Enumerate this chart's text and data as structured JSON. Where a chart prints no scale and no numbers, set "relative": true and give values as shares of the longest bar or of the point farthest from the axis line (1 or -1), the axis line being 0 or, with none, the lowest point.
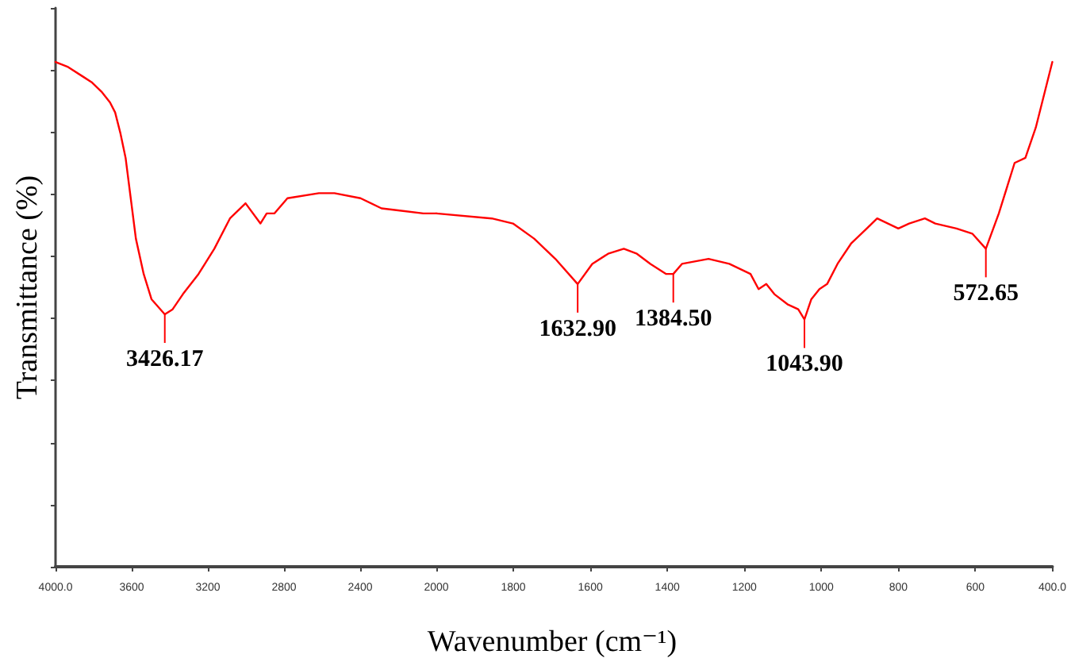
{
  "chart_data": [
    {
      "type": "line",
      "ylabel": "Transmittance (%)",
      "relative": true,
      "color": "#ff0000",
      "xlim": [
        4000,
        2000
      ],
      "xticks": [
        {
          "value": 4000,
          "label": "4000.0"
        },
        3600,
        3200,
        2800,
        2400,
        2000
      ],
      "x": [
        4000,
        3934,
        3852,
        3811,
        3756,
        3714,
        3687,
        3660,
        3632,
        3605,
        3578,
        3537,
        3496,
        3426.17,
        3385,
        3331,
        3249,
        3166,
        3084,
        3002,
        2924,
        2891,
        2850,
        2782,
        2617,
        2535,
        2398,
        2288,
        2068,
        2000
      ],
      "values": [
        1.0,
        0.99,
        0.97,
        0.96,
        0.94,
        0.92,
        0.9,
        0.86,
        0.81,
        0.73,
        0.65,
        0.58,
        0.53,
        0.5,
        0.51,
        0.54,
        0.58,
        0.63,
        0.69,
        0.72,
        0.68,
        0.7,
        0.7,
        0.73,
        0.74,
        0.74,
        0.73,
        0.71,
        0.7,
        0.7
      ],
      "annotations": [
        {
          "text": "3426.17",
          "x": 3426.17,
          "y": 0.5
        }
      ]
    },
    {
      "type": "line",
      "xlabel": "Wavenumber (cm⁻¹)",
      "relative": true,
      "color": "#ff0000",
      "xlim": [
        2000,
        400
      ],
      "tick_labels": "x",
      "xticks": [
        {
          "value": 2000,
          "label": null
        },
        1800,
        1600,
        1400,
        1200,
        1000,
        800,
        600,
        {
          "value": 400,
          "label": "400.0"
        }
      ],
      "x": [
        2000,
        1856,
        1801,
        1746,
        1691,
        1632.9,
        1595,
        1554,
        1513,
        1479,
        1444,
        1403,
        1384.5,
        1362,
        1293,
        1239,
        1184,
        1163,
        1143,
        1122,
        1088,
        1060,
        1043.9,
        1026,
        1005,
        985,
        958,
        923,
        882,
        855,
        827,
        800,
        772,
        731,
        704,
        649,
        608,
        572.65,
        539,
        498,
        470,
        443,
        400
      ],
      "values": [
        0.7,
        0.69,
        0.68,
        0.65,
        0.61,
        0.56,
        0.6,
        0.62,
        0.63,
        0.62,
        0.6,
        0.58,
        0.58,
        0.6,
        0.61,
        0.6,
        0.58,
        0.55,
        0.56,
        0.54,
        0.52,
        0.51,
        0.49,
        0.53,
        0.55,
        0.56,
        0.6,
        0.64,
        0.67,
        0.69,
        0.68,
        0.67,
        0.68,
        0.69,
        0.68,
        0.67,
        0.66,
        0.63,
        0.7,
        0.8,
        0.81,
        0.87,
        1.0
      ],
      "annotations": [
        {
          "text": "1632.90",
          "x": 1632.9,
          "y": 0.56
        },
        {
          "text": "1384.50",
          "x": 1384.5,
          "y": 0.58
        },
        {
          "text": "1043.90",
          "x": 1043.9,
          "y": 0.49
        },
        {
          "text": "572.65",
          "x": 572.65,
          "y": 0.63
        }
      ]
    }
  ]
}
